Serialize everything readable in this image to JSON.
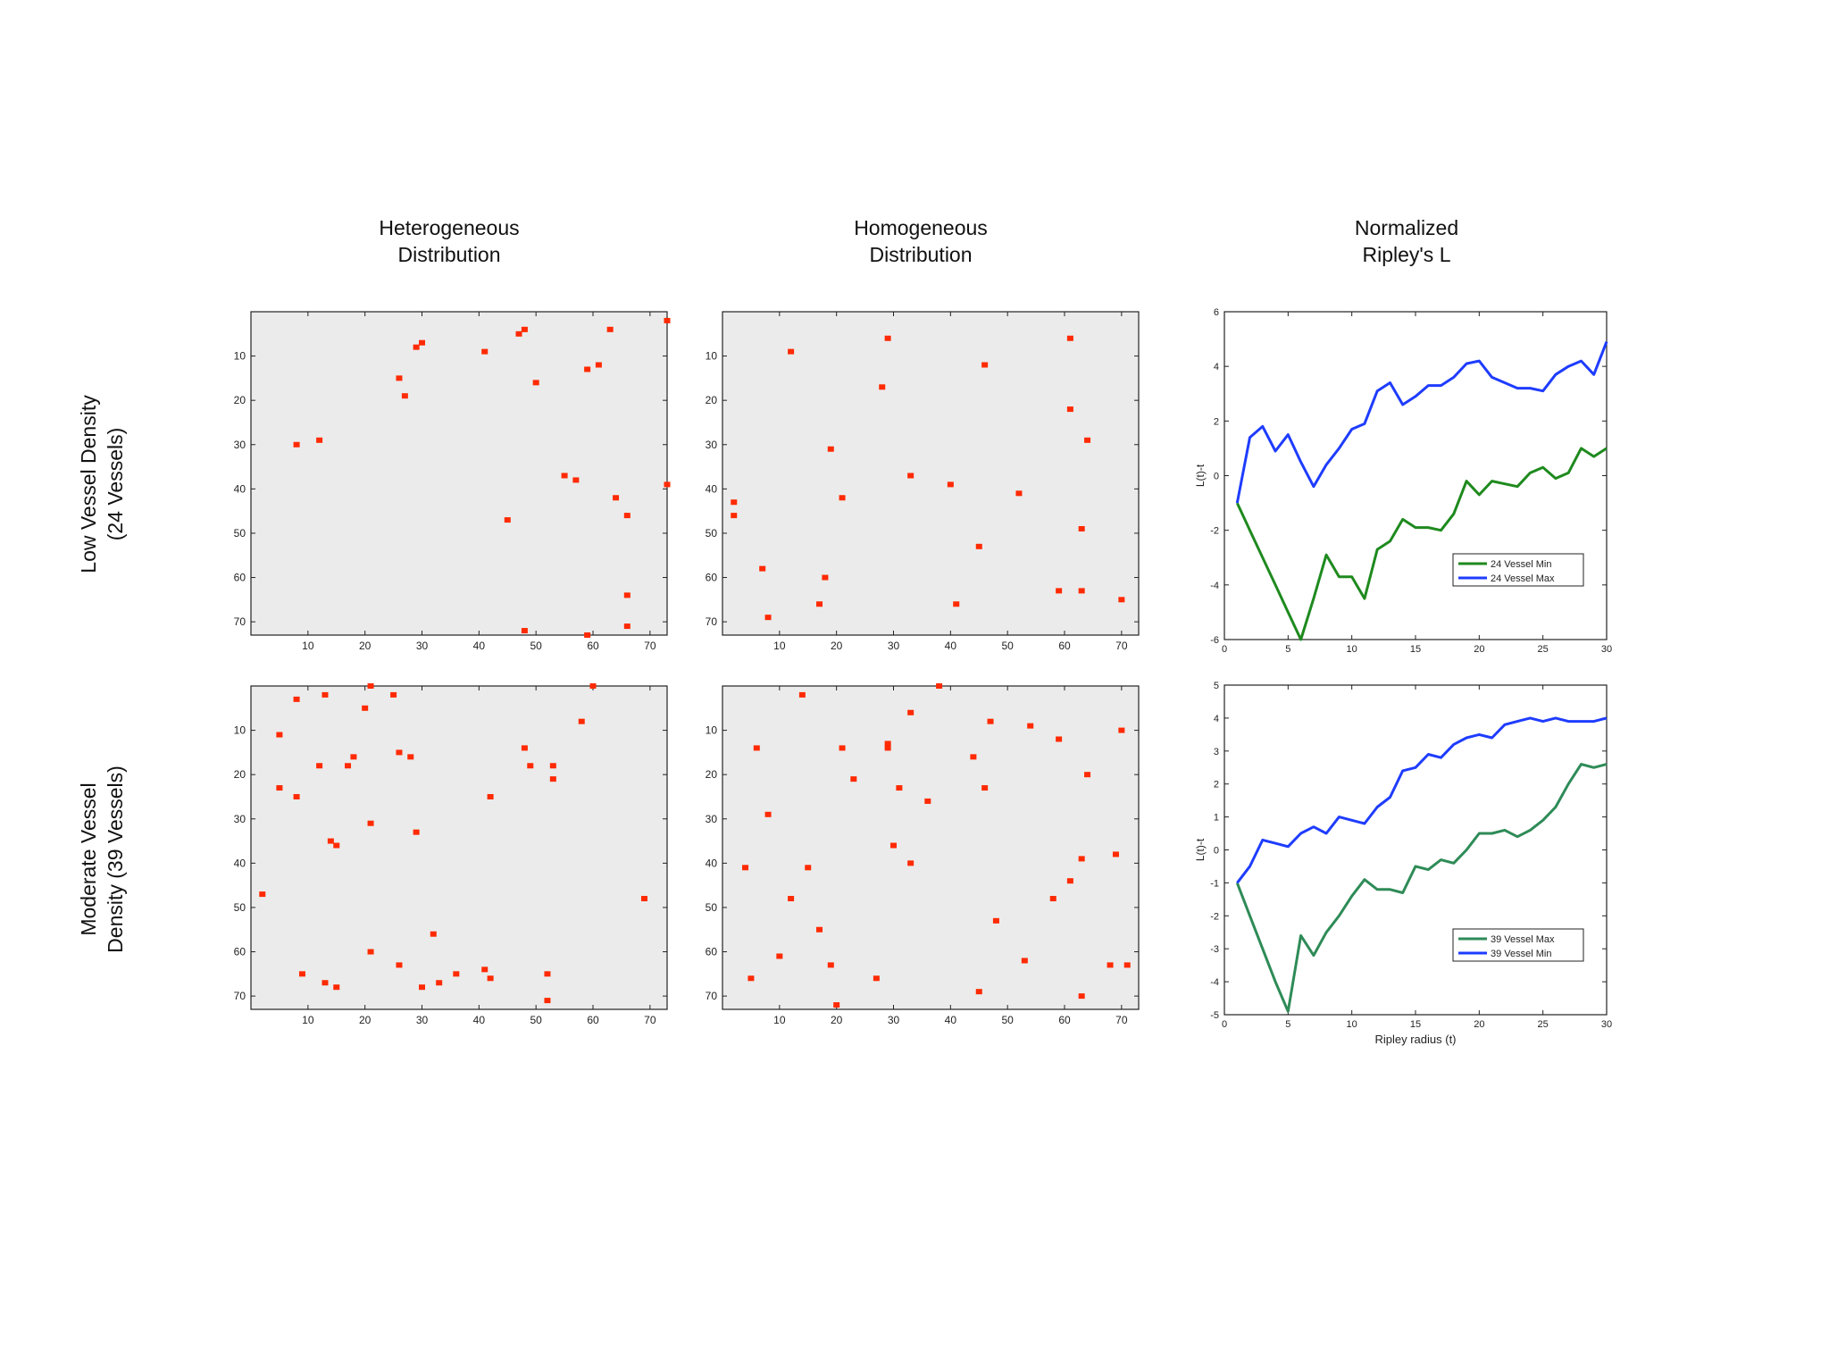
{
  "columns": [
    {
      "line1": "Heterogeneous",
      "line2": "Distribution"
    },
    {
      "line1": "Homogeneous",
      "line2": "Distribution"
    },
    {
      "line1": "Normalized",
      "line2": "Ripley's L"
    }
  ],
  "rows": [
    {
      "line1": "Low Vessel Density",
      "line2": "(24 Vessels)"
    },
    {
      "line1": "Moderate Vessel",
      "line2": "Density (39 Vessels)"
    }
  ],
  "colors": {
    "marker": "#ff2a00",
    "background": "#ebebeb",
    "min_line": "#1e8a1e",
    "max_line": "#1e3cff",
    "min_line_2": "#2e8b57"
  },
  "chart_data": [
    {
      "type": "scatter",
      "title": "Heterogeneous Distribution",
      "row": "Low Vessel Density (24 Vessels)",
      "xlim": [
        0,
        73
      ],
      "ylim": [
        0,
        73
      ],
      "y_inverted": true,
      "xticks": [
        10,
        20,
        30,
        40,
        50,
        60,
        70
      ],
      "yticks": [
        10,
        20,
        30,
        40,
        50,
        60,
        70
      ],
      "points": [
        [
          8,
          30
        ],
        [
          12,
          29
        ],
        [
          26,
          15
        ],
        [
          27,
          19
        ],
        [
          29,
          8
        ],
        [
          30,
          7
        ],
        [
          41,
          9
        ],
        [
          45,
          47
        ],
        [
          47,
          5
        ],
        [
          48,
          4
        ],
        [
          48,
          72
        ],
        [
          50,
          16
        ],
        [
          55,
          37
        ],
        [
          57,
          38
        ],
        [
          59,
          13
        ],
        [
          59,
          73
        ],
        [
          61,
          12
        ],
        [
          63,
          4
        ],
        [
          64,
          42
        ],
        [
          66,
          46
        ],
        [
          66,
          64
        ],
        [
          66,
          71
        ],
        [
          73,
          2
        ],
        [
          73,
          39
        ]
      ]
    },
    {
      "type": "scatter",
      "title": "Homogeneous Distribution",
      "row": "Low Vessel Density (24 Vessels)",
      "xlim": [
        0,
        73
      ],
      "ylim": [
        0,
        73
      ],
      "y_inverted": true,
      "xticks": [
        10,
        20,
        30,
        40,
        50,
        60,
        70
      ],
      "yticks": [
        10,
        20,
        30,
        40,
        50,
        60,
        70
      ],
      "points": [
        [
          12,
          9
        ],
        [
          29,
          6
        ],
        [
          28,
          17
        ],
        [
          19,
          31
        ],
        [
          21,
          42
        ],
        [
          33,
          37
        ],
        [
          40,
          39
        ],
        [
          46,
          12
        ],
        [
          52,
          41
        ],
        [
          45,
          53
        ],
        [
          41,
          66
        ],
        [
          18,
          60
        ],
        [
          17,
          66
        ],
        [
          7,
          58
        ],
        [
          8,
          69
        ],
        [
          2,
          43
        ],
        [
          2,
          46
        ],
        [
          61,
          6
        ],
        [
          61,
          22
        ],
        [
          64,
          29
        ],
        [
          63,
          49
        ],
        [
          63,
          63
        ],
        [
          59,
          63
        ],
        [
          70,
          65
        ]
      ]
    },
    {
      "type": "line",
      "title": "Normalized Ripley's L",
      "row": "Low Vessel Density (24 Vessels)",
      "xlabel": "",
      "ylabel": "L(t)-t",
      "xlim": [
        0,
        30
      ],
      "ylim": [
        -6,
        6
      ],
      "xticks": [
        0,
        5,
        10,
        15,
        20,
        25,
        30
      ],
      "yticks": [
        -6,
        -4,
        -2,
        0,
        2,
        4,
        6
      ],
      "legend": "bottom-right",
      "x": [
        1,
        2,
        3,
        4,
        5,
        6,
        7,
        8,
        9,
        10,
        11,
        12,
        13,
        14,
        15,
        16,
        17,
        18,
        19,
        20,
        21,
        22,
        23,
        24,
        25,
        26,
        27,
        28,
        29,
        30
      ],
      "series": [
        {
          "name": "24 Vessel Min",
          "color": "#1e8a1e",
          "values": [
            -1,
            -2,
            -3,
            -4,
            -5,
            -6,
            -4.5,
            -2.9,
            -3.7,
            -3.7,
            -4.5,
            -2.7,
            -2.4,
            -1.6,
            -1.9,
            -1.9,
            -2,
            -1.4,
            -0.2,
            -0.7,
            -0.2,
            -0.3,
            -0.4,
            0.1,
            0.3,
            -0.1,
            0.1,
            1,
            0.7,
            1
          ]
        },
        {
          "name": "24 Vessel Max",
          "color": "#1e3cff",
          "values": [
            -1,
            1.4,
            1.8,
            0.9,
            1.5,
            0.5,
            -0.4,
            0.4,
            1,
            1.7,
            1.9,
            3.1,
            3.4,
            2.6,
            2.9,
            3.3,
            3.3,
            3.6,
            4.1,
            4.2,
            3.6,
            3.4,
            3.2,
            3.2,
            3.1,
            3.7,
            4,
            4.2,
            3.7,
            4.9
          ]
        }
      ]
    },
    {
      "type": "scatter",
      "title": "Heterogeneous Distribution",
      "row": "Moderate Vessel Density (39 Vessels)",
      "xlim": [
        0,
        73
      ],
      "ylim": [
        0,
        73
      ],
      "y_inverted": true,
      "xticks": [
        10,
        20,
        30,
        40,
        50,
        60,
        70
      ],
      "yticks": [
        10,
        20,
        30,
        40,
        50,
        60,
        70
      ],
      "points": [
        [
          2,
          47
        ],
        [
          5,
          11
        ],
        [
          5,
          23
        ],
        [
          8,
          3
        ],
        [
          8,
          25
        ],
        [
          9,
          65
        ],
        [
          12,
          18
        ],
        [
          13,
          2
        ],
        [
          13,
          67
        ],
        [
          14,
          35
        ],
        [
          15,
          36
        ],
        [
          15,
          68
        ],
        [
          17,
          18
        ],
        [
          18,
          16
        ],
        [
          20,
          5
        ],
        [
          21,
          0
        ],
        [
          21,
          31
        ],
        [
          21,
          60
        ],
        [
          25,
          2
        ],
        [
          26,
          15
        ],
        [
          26,
          63
        ],
        [
          28,
          16
        ],
        [
          29,
          33
        ],
        [
          30,
          68
        ],
        [
          32,
          56
        ],
        [
          33,
          67
        ],
        [
          36,
          65
        ],
        [
          41,
          64
        ],
        [
          42,
          66
        ],
        [
          42,
          25
        ],
        [
          48,
          14
        ],
        [
          49,
          18
        ],
        [
          52,
          65
        ],
        [
          52,
          71
        ],
        [
          53,
          18
        ],
        [
          53,
          21
        ],
        [
          58,
          8
        ],
        [
          60,
          0
        ],
        [
          69,
          48
        ]
      ]
    },
    {
      "type": "scatter",
      "title": "Homogeneous Distribution",
      "row": "Moderate Vessel Density (39 Vessels)",
      "xlim": [
        0,
        73
      ],
      "ylim": [
        0,
        73
      ],
      "y_inverted": true,
      "xticks": [
        10,
        20,
        30,
        40,
        50,
        60,
        70
      ],
      "yticks": [
        10,
        20,
        30,
        40,
        50,
        60,
        70
      ],
      "points": [
        [
          14,
          2
        ],
        [
          38,
          0
        ],
        [
          33,
          6
        ],
        [
          47,
          8
        ],
        [
          54,
          9
        ],
        [
          59,
          12
        ],
        [
          70,
          10
        ],
        [
          6,
          14
        ],
        [
          21,
          14
        ],
        [
          29,
          13
        ],
        [
          29,
          14
        ],
        [
          44,
          16
        ],
        [
          23,
          21
        ],
        [
          31,
          23
        ],
        [
          46,
          23
        ],
        [
          64,
          20
        ],
        [
          8,
          29
        ],
        [
          36,
          26
        ],
        [
          30,
          36
        ],
        [
          33,
          40
        ],
        [
          4,
          41
        ],
        [
          15,
          41
        ],
        [
          63,
          39
        ],
        [
          69,
          38
        ],
        [
          12,
          48
        ],
        [
          58,
          48
        ],
        [
          61,
          44
        ],
        [
          48,
          53
        ],
        [
          17,
          55
        ],
        [
          10,
          61
        ],
        [
          19,
          63
        ],
        [
          53,
          62
        ],
        [
          5,
          66
        ],
        [
          27,
          66
        ],
        [
          45,
          69
        ],
        [
          63,
          70
        ],
        [
          20,
          72
        ],
        [
          68,
          63
        ],
        [
          71,
          63
        ]
      ]
    },
    {
      "type": "line",
      "title": "Normalized Ripley's L",
      "row": "Moderate Vessel Density (39 Vessels)",
      "xlabel": "Ripley radius (t)",
      "ylabel": "L(t)-t",
      "xlim": [
        0,
        30
      ],
      "ylim": [
        -5,
        5
      ],
      "xticks": [
        0,
        5,
        10,
        15,
        20,
        25,
        30
      ],
      "yticks": [
        -5,
        -4,
        -3,
        -2,
        -1,
        0,
        1,
        2,
        3,
        4,
        5
      ],
      "legend": "bottom-right",
      "x": [
        1,
        2,
        3,
        4,
        5,
        6,
        7,
        8,
        9,
        10,
        11,
        12,
        13,
        14,
        15,
        16,
        17,
        18,
        19,
        20,
        21,
        22,
        23,
        24,
        25,
        26,
        27,
        28,
        29,
        30
      ],
      "series": [
        {
          "name": "39 Vessel Max",
          "color": "#2e8b57",
          "values": [
            -1,
            -2,
            -3,
            -4,
            -4.9,
            -2.6,
            -3.2,
            -2.5,
            -2,
            -1.4,
            -0.9,
            -1.2,
            -1.2,
            -1.3,
            -0.5,
            -0.6,
            -0.3,
            -0.4,
            0,
            0.5,
            0.5,
            0.6,
            0.4,
            0.6,
            0.9,
            1.3,
            2,
            2.6,
            2.5,
            2.6
          ]
        },
        {
          "name": "39 Vessel Min",
          "color": "#1e3cff",
          "values": [
            -1,
            -0.5,
            0.3,
            0.2,
            0.1,
            0.5,
            0.7,
            0.5,
            1,
            0.9,
            0.8,
            1.3,
            1.6,
            2.4,
            2.5,
            2.9,
            2.8,
            3.2,
            3.4,
            3.5,
            3.4,
            3.8,
            3.9,
            4,
            3.9,
            4,
            3.9,
            3.9,
            3.9,
            4
          ]
        }
      ]
    }
  ]
}
